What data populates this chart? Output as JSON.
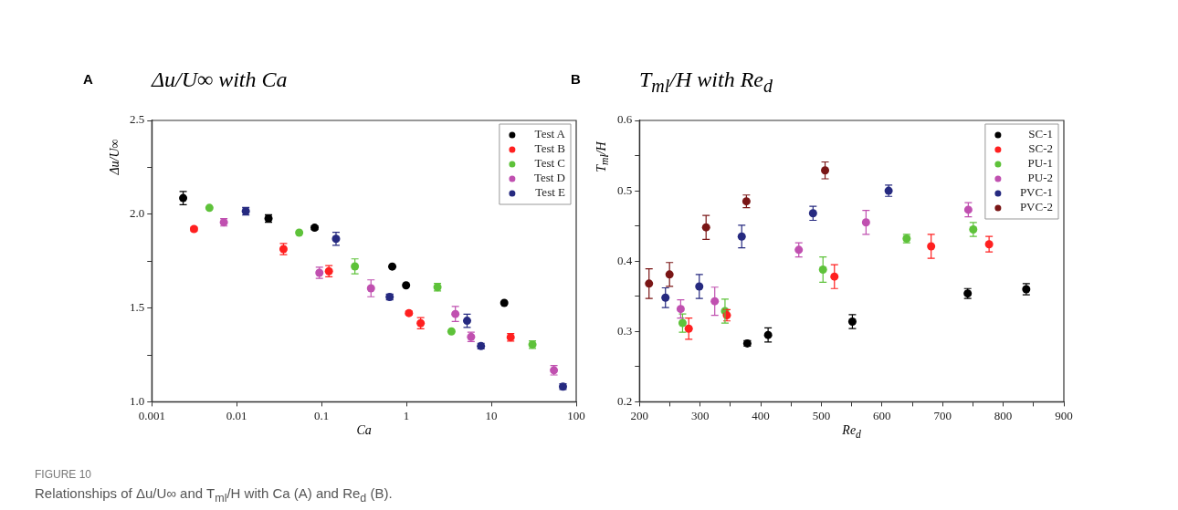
{
  "chart_data": [
    {
      "type": "scatter",
      "title": "Δu/U∞  with Ca",
      "xlabel": "Ca",
      "ylabel": "Δu/U∞",
      "log": "x",
      "marker": "circle",
      "legend": "top right",
      "grid": false,
      "xlim": [
        0.001,
        100
      ],
      "xticks": [
        0.001,
        0.01,
        0.1,
        1,
        10,
        100
      ],
      "ylim": [
        1.0,
        2.5
      ],
      "yticks": [
        {
          "value": 1.0,
          "label": "1.0"
        },
        {
          "value": 1.25,
          "label": null
        },
        {
          "value": 1.5,
          "label": "1.5"
        },
        {
          "value": 1.75,
          "label": null
        },
        {
          "value": 2.0,
          "label": "2.0"
        },
        {
          "value": 2.25,
          "label": null
        },
        {
          "value": 2.5,
          "label": "2.5"
        }
      ],
      "annotations": [
        "A",
        "FIGURE 10",
        "Relationships of Δu/U∞ and T$_{ml}$/H with Ca (A) and Re$_{d}$ (B)."
      ],
      "series": [
        {
          "name": "Test A",
          "color": "#000000",
          "x": [
            0.00234,
            0.0237,
            0.0828,
            0.68,
            0.99,
            14.2
          ],
          "values": [
            2.086,
            1.977,
            1.928,
            1.721,
            1.621,
            1.527
          ],
          "errors": [
            0.035,
            0.02,
            0.01,
            null,
            null,
            null
          ]
        },
        {
          "name": "Test B",
          "color": "#ff2020",
          "x": [
            0.00314,
            0.0356,
            0.122,
            1.07,
            1.47,
            16.9
          ],
          "values": [
            1.921,
            1.814,
            1.696,
            1.473,
            1.419,
            1.344
          ],
          "errors": [
            0.01,
            0.03,
            0.03,
            0.01,
            0.03,
            0.02
          ]
        },
        {
          "name": "Test C",
          "color": "#5ec23a",
          "x": [
            0.00477,
            0.0545,
            0.247,
            2.32,
            3.39,
            30.5
          ],
          "values": [
            2.034,
            1.902,
            1.722,
            1.611,
            1.375,
            1.305
          ],
          "errors": [
            null,
            null,
            0.04,
            0.02,
            null,
            0.02
          ]
        },
        {
          "name": "Test D",
          "color": "#c050b0",
          "x": [
            0.00706,
            0.0942,
            0.382,
            3.77,
            5.77,
            54.6
          ],
          "values": [
            1.957,
            1.688,
            1.605,
            1.468,
            1.346,
            1.168
          ],
          "errors": [
            0.02,
            0.03,
            0.045,
            0.04,
            0.025,
            0.025
          ]
        },
        {
          "name": "Test E",
          "color": "#262a80",
          "x": [
            0.0128,
            0.148,
            0.634,
            5.18,
            7.55,
            69.8
          ],
          "values": [
            2.016,
            1.869,
            1.559,
            1.432,
            1.297,
            1.081
          ],
          "errors": [
            0.02,
            0.035,
            0.015,
            0.035,
            0.015,
            0.015
          ]
        }
      ]
    },
    {
      "type": "scatter",
      "title": "T$_{ml}$/H with Re$_{d}$",
      "xlabel": "Re$_{d}$",
      "ylabel": "T$_{ml}$/H",
      "marker": "circle",
      "legend": "top right",
      "grid": false,
      "xlim": [
        200,
        900
      ],
      "xticks": [
        200,
        {
          "value": 250,
          "label": null
        },
        300,
        {
          "value": 350,
          "label": null
        },
        400,
        {
          "value": 450,
          "label": null
        },
        500,
        {
          "value": 550,
          "label": null
        },
        600,
        {
          "value": 650,
          "label": null
        },
        700,
        {
          "value": 750,
          "label": null
        },
        800,
        {
          "value": 850,
          "label": null
        },
        900
      ],
      "ylim": [
        0.2,
        0.6
      ],
      "yticks": [
        0.2,
        {
          "value": 0.25,
          "label": null
        },
        0.3,
        {
          "value": 0.35,
          "label": null
        },
        0.4,
        {
          "value": 0.45,
          "label": null
        },
        0.5,
        {
          "value": 0.55,
          "label": null
        },
        0.6
      ],
      "annotations": [
        "B"
      ],
      "series": [
        {
          "name": "SC-1",
          "color": "#000000",
          "x": [
            377.9,
            412.2,
            551.2,
            741.4,
            838.0
          ],
          "values": [
            0.283,
            0.295,
            0.314,
            0.354,
            0.36
          ],
          "errors": [
            0.004,
            0.01,
            0.01,
            0.007,
            0.008
          ]
        },
        {
          "name": "SC-2",
          "color": "#ff2020",
          "x": [
            281.3,
            344.2,
            521.6,
            681.1,
            776.7
          ],
          "values": [
            0.304,
            0.323,
            0.378,
            0.421,
            0.424
          ],
          "errors": [
            0.015,
            0.008,
            0.017,
            0.017,
            0.011
          ]
        },
        {
          "name": "PU-1",
          "color": "#5ec23a",
          "x": [
            271.1,
            341.1,
            502.7,
            640.7,
            750.6
          ],
          "values": [
            0.312,
            0.329,
            0.388,
            0.432,
            0.445
          ],
          "errors": [
            0.013,
            0.017,
            0.018,
            0.006,
            0.01
          ]
        },
        {
          "name": "PU-2",
          "color": "#c050b0",
          "x": [
            268.0,
            324.2,
            462.8,
            573.7,
            742.4
          ],
          "values": [
            0.332,
            0.343,
            0.416,
            0.455,
            0.473
          ],
          "errors": [
            0.013,
            0.02,
            0.01,
            0.017,
            0.01
          ]
        },
        {
          "name": "PVC-1",
          "color": "#262a80",
          "x": [
            242.9,
            298.7,
            368.7,
            486.3,
            611.0
          ],
          "values": [
            0.348,
            0.364,
            0.435,
            0.468,
            0.5
          ],
          "errors": [
            0.014,
            0.017,
            0.016,
            0.01,
            0.008
          ]
        },
        {
          "name": "PVC-2",
          "color": "#7a1616",
          "x": [
            215.8,
            249.6,
            309.9,
            376.4,
            506.2
          ],
          "values": [
            0.368,
            0.381,
            0.448,
            0.485,
            0.529
          ],
          "errors": [
            0.021,
            0.017,
            0.017,
            0.009,
            0.012
          ]
        }
      ]
    }
  ]
}
